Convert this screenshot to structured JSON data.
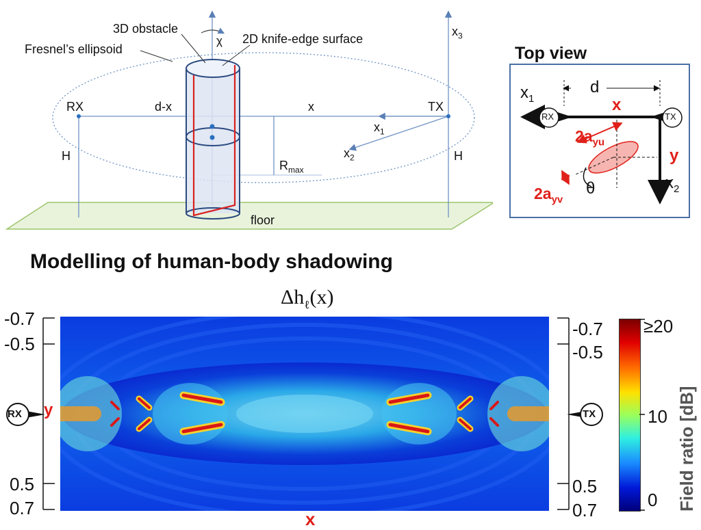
{
  "geometry_diagram": {
    "labels": {
      "obstacle": "3D obstacle",
      "rotation": "χ",
      "knife_edge": "2D knife-edge surface",
      "ellipsoid": "Fresnel’s ellipsoid",
      "rx": "RX",
      "tx": "TX",
      "d_minus_x": "d-x",
      "x": "x",
      "x1": "x",
      "x1_sub": "1",
      "x2": "x",
      "x2_sub": "2",
      "x3": "x",
      "x3_sub": "3",
      "rmax": "R",
      "rmax_sub": "max",
      "h_left": "H",
      "h_right": "H",
      "floor": "floor"
    }
  },
  "top_view": {
    "title": "Top view",
    "x1": "x",
    "x1_sub": "1",
    "d": "d",
    "x": "x",
    "rx": "RX",
    "tx": "TX",
    "a_yu": "2a",
    "a_yu_sub": "yu",
    "a_yv": "2a",
    "a_yv_sub": "yv",
    "y": "y",
    "theta": "θ",
    "x2": "x",
    "x2_sub": "2"
  },
  "section_heading": "Modelling of human-body shadowing",
  "heatmap": {
    "title": "Δh",
    "title_sub": "ℓ",
    "title_arg": "(x)",
    "left_ticks": [
      "-0.7",
      "-0.5",
      "0.5",
      "0.7"
    ],
    "right_ticks": [
      "-0.7",
      "-0.5",
      "0.5",
      "0.7"
    ],
    "rx": "RX",
    "tx": "TX",
    "ylabel": "y",
    "xlabel": "x",
    "colorbar": {
      "label": "Field ratio [dB]",
      "ticks": [
        "≥20",
        "10",
        "0"
      ]
    }
  }
}
